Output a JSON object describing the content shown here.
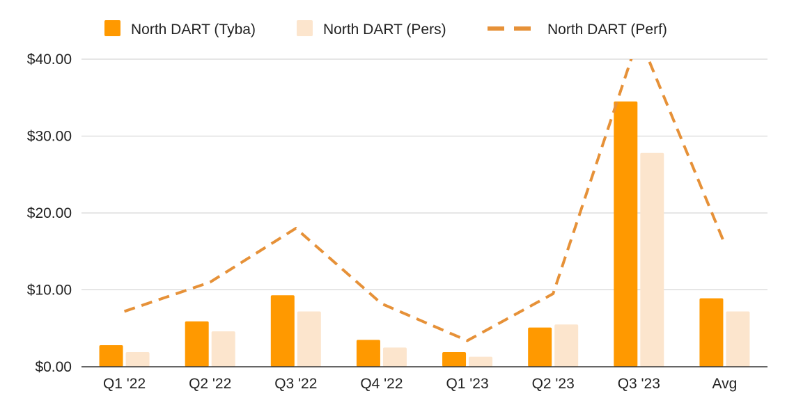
{
  "chart_data": {
    "type": "bar",
    "title": "",
    "xlabel": "",
    "ylabel": "",
    "ylim": [
      0,
      40
    ],
    "yticks": [
      0,
      10,
      20,
      30,
      40
    ],
    "ytick_labels": [
      "$0.00",
      "$10.00",
      "$20.00",
      "$30.00",
      "$40.00"
    ],
    "categories": [
      "Q1 '22",
      "Q2 '22",
      "Q3 '22",
      "Q4 '22",
      "Q1 '23",
      "Q2 '23",
      "Q3 '23",
      "Avg"
    ],
    "grid": true,
    "legend_position": "top-center",
    "series": [
      {
        "name": "North DART (Tyba)",
        "kind": "bar",
        "color": "#FF9900",
        "values": [
          2.8,
          5.9,
          9.3,
          3.5,
          1.9,
          5.1,
          34.5,
          8.9
        ]
      },
      {
        "name": "North DART (Pers)",
        "kind": "bar",
        "color": "#FCE5CD",
        "values": [
          1.9,
          4.6,
          7.2,
          2.5,
          1.3,
          5.5,
          27.8,
          7.2
        ]
      },
      {
        "name": "North DART (Perf)",
        "kind": "line",
        "style": "dashed",
        "color": "#E69138",
        "values": [
          7.2,
          11.0,
          18.0,
          8.2,
          3.4,
          9.5,
          43.0,
          16.0
        ]
      }
    ]
  }
}
